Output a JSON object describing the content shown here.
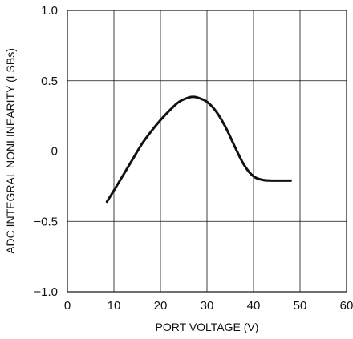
{
  "chart_data": {
    "type": "line",
    "title": "",
    "xlabel": "PORT VOLTAGE (V)",
    "ylabel": "ADC INTEGRAL NONLINEARITY (LSBs)",
    "xlim": [
      0,
      60
    ],
    "ylim": [
      -1.0,
      1.0
    ],
    "grid": true,
    "x_ticks": [
      0,
      10,
      20,
      30,
      40,
      50,
      60
    ],
    "x_tick_labels": [
      "0",
      "10",
      "20",
      "30",
      "40",
      "50",
      "60"
    ],
    "y_ticks": [
      1.0,
      0.5,
      0,
      -0.5,
      -1.0
    ],
    "y_tick_labels": [
      "1.0",
      "0.5",
      "0",
      "−0.5",
      "−1.0"
    ],
    "series": [
      {
        "x": [
          8.5,
          10,
          12,
          14,
          16,
          18,
          20,
          22,
          24,
          26,
          27,
          28,
          30,
          32,
          34,
          36,
          38,
          40,
          42,
          44,
          46,
          48
        ],
        "y": [
          -0.36,
          -0.28,
          -0.17,
          -0.06,
          0.05,
          0.14,
          0.22,
          0.29,
          0.35,
          0.38,
          0.385,
          0.38,
          0.35,
          0.28,
          0.17,
          0.03,
          -0.1,
          -0.18,
          -0.205,
          -0.21,
          -0.21,
          -0.21
        ],
        "color": "#111111"
      }
    ]
  }
}
